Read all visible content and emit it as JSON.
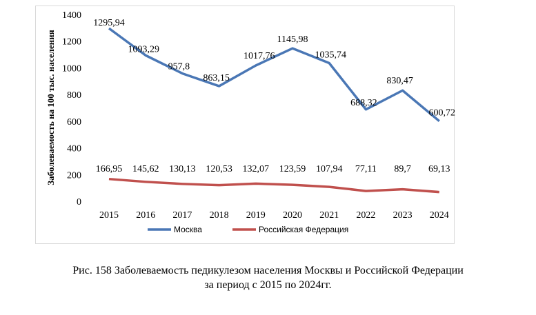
{
  "chart_data": {
    "type": "line",
    "categories": [
      "2015",
      "2016",
      "2017",
      "2018",
      "2019",
      "2020",
      "2021",
      "2022",
      "2023",
      "2024"
    ],
    "series": [
      {
        "name": "Москва",
        "color": "#4a77b5",
        "values": [
          1295.94,
          1093.29,
          957.8,
          863.15,
          1017.76,
          1145.98,
          1035.74,
          688.32,
          830.47,
          600.72
        ],
        "labels": [
          "1295,94",
          "1093,29",
          "957,8",
          "863,15",
          "1017,76",
          "1145,98",
          "1035,74",
          "688,32",
          "830,47",
          "600,72"
        ]
      },
      {
        "name": "Российская Федерация",
        "color": "#c0504d",
        "values": [
          166.95,
          145.62,
          130.13,
          120.53,
          132.07,
          123.59,
          107.94,
          77.11,
          89.7,
          69.13
        ],
        "labels": [
          "166,95",
          "145,62",
          "130,13",
          "120,53",
          "132,07",
          "123,59",
          "107,94",
          "77,11",
          "89,7",
          "69,13"
        ]
      }
    ],
    "ylabel": "Заболеваемость на 100 тыс. населения",
    "xlabel": "",
    "ylim": [
      0,
      1400
    ],
    "yticks": [
      0,
      200,
      400,
      600,
      800,
      1000,
      1200,
      1400
    ],
    "grid": false,
    "legend": "bottom"
  },
  "caption": {
    "line1": "Рис. 158 Заболеваемость педикулезом населения Москвы и Российской Федерации",
    "line2": "за период с 2015 по 2024гг."
  }
}
